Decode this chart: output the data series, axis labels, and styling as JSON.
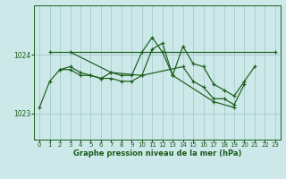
{
  "title": "Graphe pression niveau de la mer (hPa)",
  "bg_color": "#cce8e8",
  "grid_color": "#aad0d0",
  "line_color": "#1a5c1a",
  "marker_color": "#1a5c1a",
  "yticks": [
    1023,
    1024
  ],
  "ylim": [
    1022.55,
    1024.85
  ],
  "xlim": [
    -0.5,
    23.5
  ],
  "xticks": [
    0,
    1,
    2,
    3,
    4,
    5,
    6,
    7,
    8,
    9,
    10,
    11,
    12,
    13,
    14,
    15,
    16,
    17,
    18,
    19,
    20,
    21,
    22,
    23
  ],
  "series": [
    {
      "x": [
        0,
        1,
        2,
        3,
        4,
        5,
        6,
        7,
        8,
        9,
        10,
        11,
        12,
        13,
        14,
        15,
        16,
        17,
        18,
        19,
        20,
        21
      ],
      "y": [
        1023.1,
        1023.55,
        1023.75,
        1023.75,
        1023.65,
        1023.65,
        1023.6,
        1023.6,
        1023.55,
        1023.55,
        1023.65,
        1024.1,
        1024.2,
        1023.65,
        1024.15,
        1023.85,
        1023.8,
        1023.5,
        1023.4,
        1023.3,
        1023.55,
        1023.8
      ]
    },
    {
      "x": [
        1,
        23
      ],
      "y": [
        1024.05,
        1024.05
      ]
    },
    {
      "x": [
        2,
        3,
        4,
        5,
        6,
        7,
        10,
        14,
        15,
        16,
        17,
        18,
        19,
        20
      ],
      "y": [
        1023.75,
        1023.8,
        1023.7,
        1023.65,
        1023.6,
        1023.7,
        1023.65,
        1023.8,
        1023.55,
        1023.45,
        1023.25,
        1023.25,
        1023.15,
        1023.5
      ]
    },
    {
      "x": [
        3,
        7,
        8,
        9,
        10,
        11,
        12,
        13,
        17,
        19
      ],
      "y": [
        1024.05,
        1023.7,
        1023.65,
        1023.65,
        1024.05,
        1024.3,
        1024.05,
        1023.65,
        1023.2,
        1023.1
      ]
    }
  ]
}
